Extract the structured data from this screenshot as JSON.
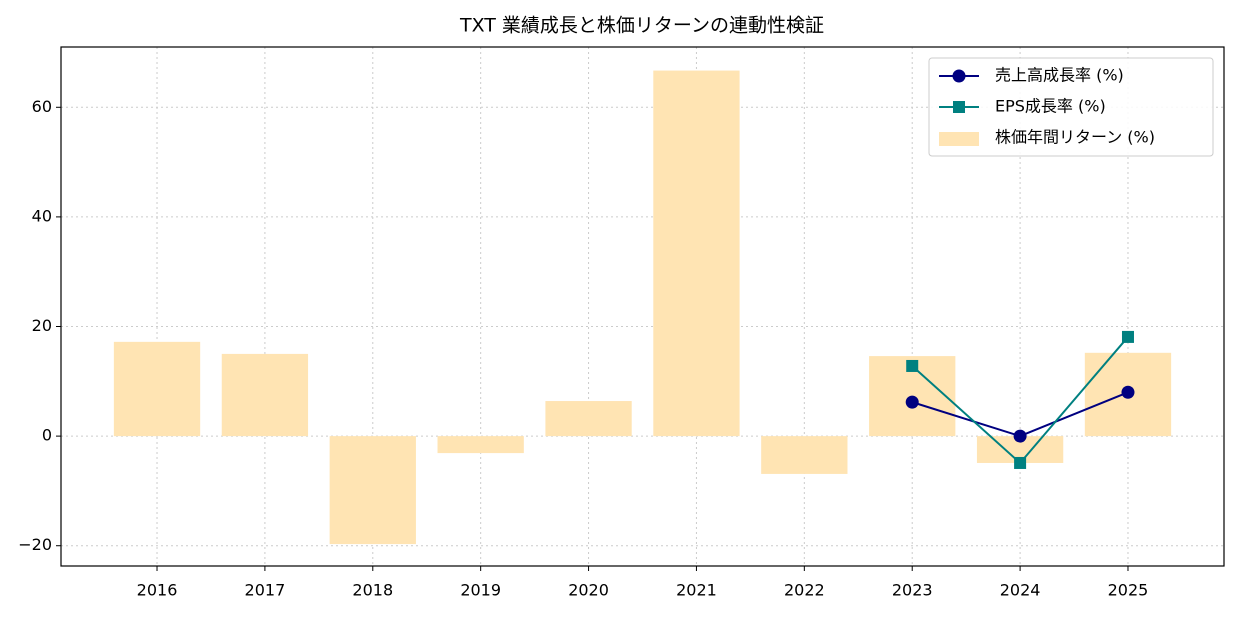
{
  "chart_data": {
    "type": "bar",
    "title": "TXT 業績成長と株価リターンの連動性検証",
    "categories": [
      "2016",
      "2017",
      "2018",
      "2019",
      "2020",
      "2021",
      "2022",
      "2023",
      "2024",
      "2025"
    ],
    "series": [
      {
        "name": "売上高成長率 (%)",
        "type": "line",
        "marker": "circle",
        "color": "#000080",
        "values": [
          null,
          null,
          null,
          null,
          null,
          null,
          null,
          6.2,
          0,
          8.0
        ]
      },
      {
        "name": "EPS成長率 (%)",
        "type": "line",
        "marker": "square",
        "color": "#008080",
        "values": [
          null,
          null,
          null,
          null,
          null,
          null,
          null,
          12.8,
          -4.9,
          18.1
        ]
      },
      {
        "name": "株価年間リターン (%)",
        "type": "bar",
        "color": "#ffe4b3",
        "values": [
          17.2,
          15.0,
          -19.7,
          -3.1,
          6.4,
          66.7,
          -6.9,
          14.6,
          -4.9,
          15.2
        ]
      }
    ],
    "ylim": [
      -23.7,
      71.0
    ],
    "yticks": [
      {
        "value": -20,
        "label": "−20"
      },
      0,
      20,
      40,
      60
    ],
    "grid": true,
    "legend": "upper right"
  }
}
